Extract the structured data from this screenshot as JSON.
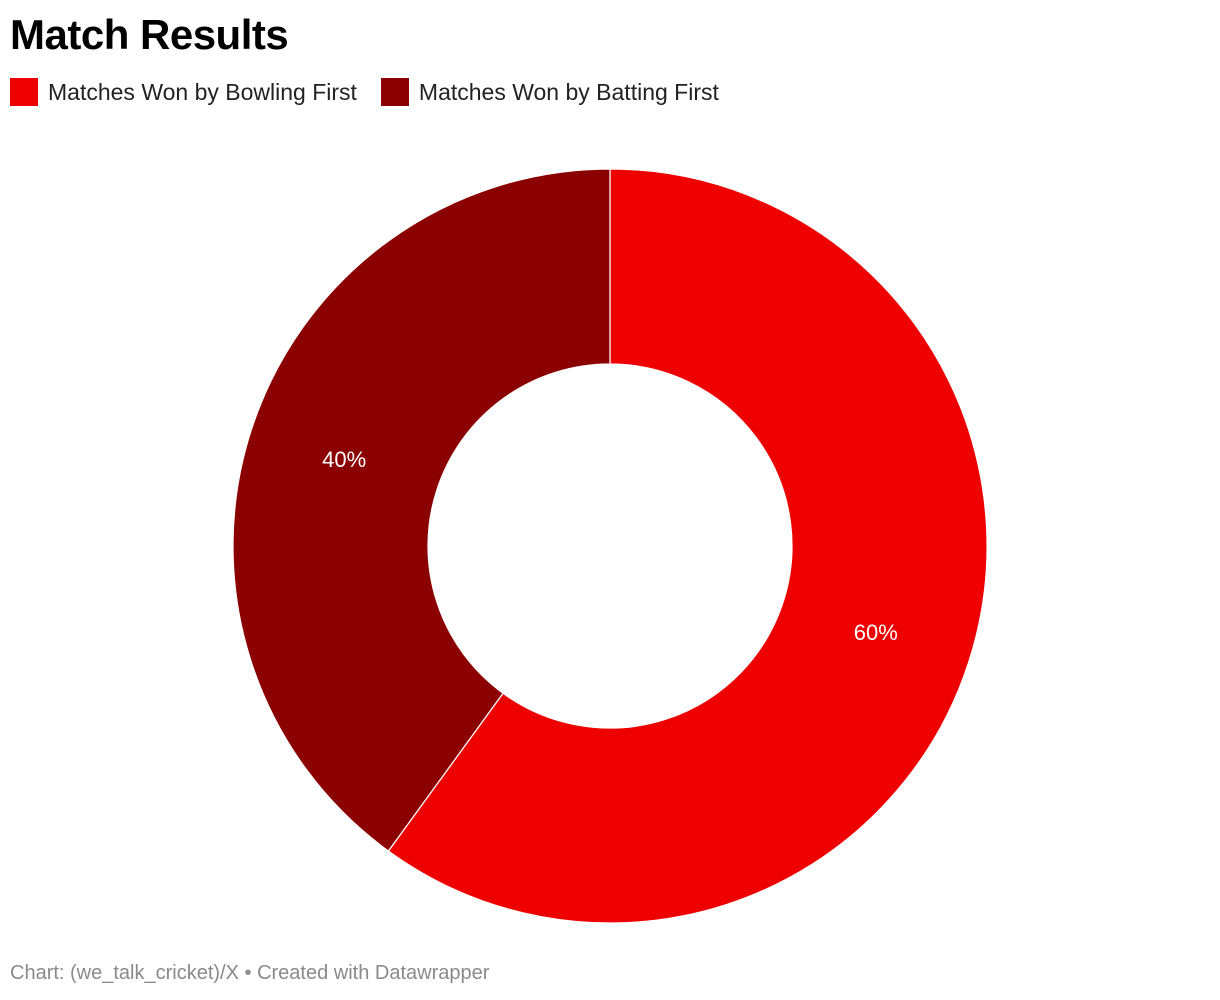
{
  "chart_data": {
    "type": "pie",
    "style": "donut",
    "title": "Match Results",
    "categories": [
      "Matches Won by Bowling First",
      "Matches Won by Batting First"
    ],
    "values": [
      60,
      40
    ],
    "data_labels": [
      "60%",
      "40%"
    ],
    "colors": [
      "#ee0000",
      "#8b0000"
    ],
    "legend_placement": "top-left"
  },
  "footer": {
    "credit": "Chart: (we_talk_cricket)/X • Created with Datawrapper"
  }
}
